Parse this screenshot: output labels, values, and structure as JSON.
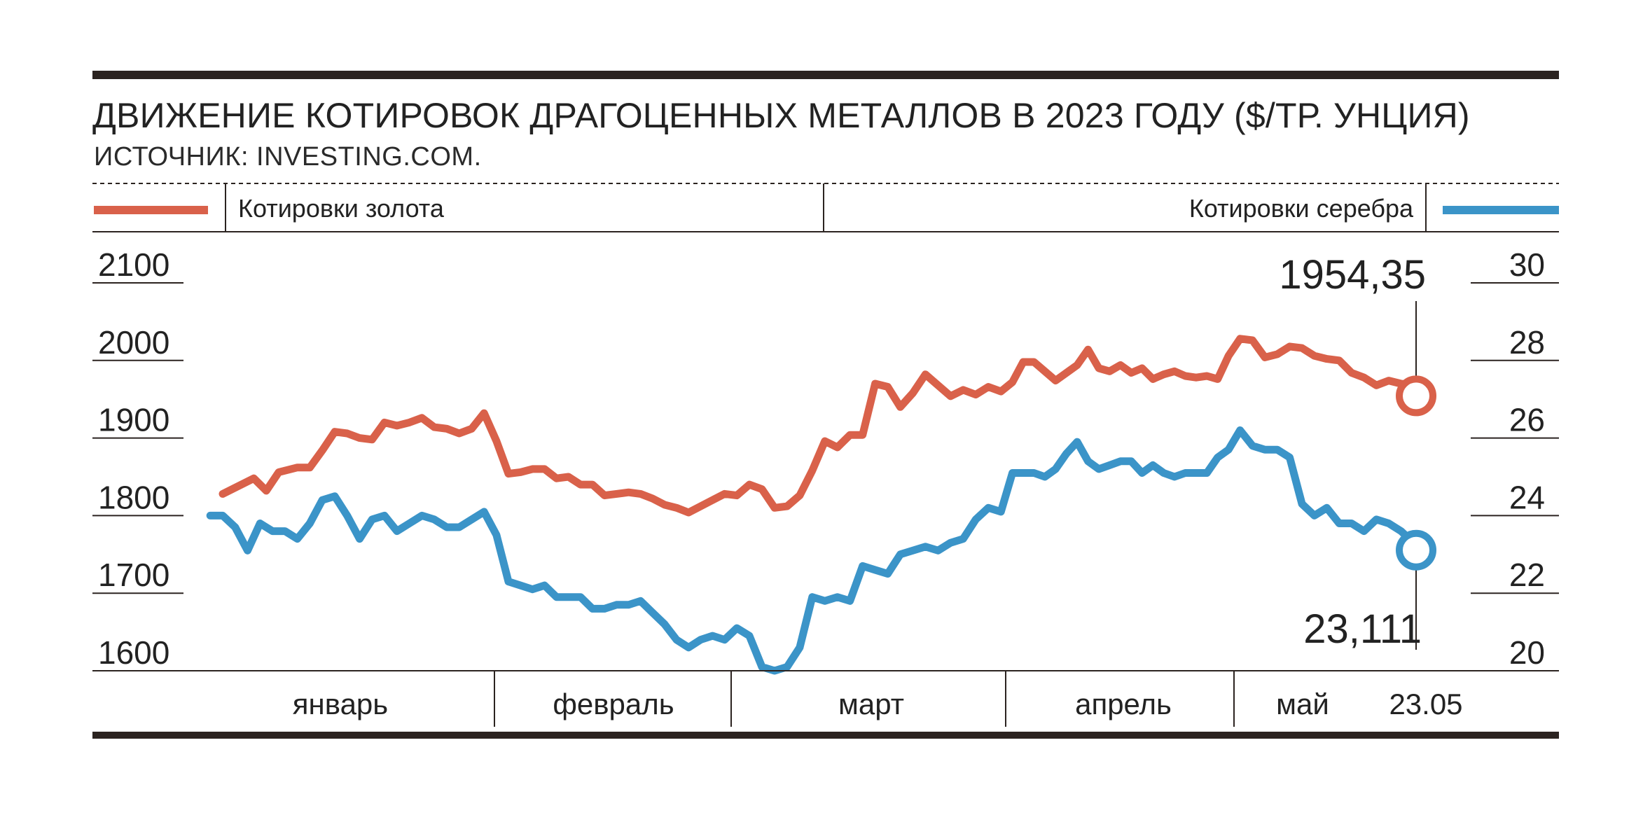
{
  "header": {
    "title": "ДВИЖЕНИЕ КОТИРОВОК ДРАГОЦЕННЫХ МЕТАЛЛОВ В 2023 ГОДУ ($/ТР. УНЦИЯ)",
    "source": "ИСТОЧНИК: INVESTING.COM."
  },
  "colors": {
    "gold": "#d9614a",
    "silver": "#3b94c8",
    "rule": "#2b2320"
  },
  "chart_data": {
    "type": "line",
    "x_unit": "day of 2023 (Jan 1 = 1)",
    "months": [
      "январь",
      "февраль",
      "март",
      "апрель",
      "май"
    ],
    "end_date_label": "23.05",
    "left_axis": {
      "label": "Котировки золота",
      "ticks": [
        2100,
        2000,
        1900,
        1800,
        1700,
        1600
      ],
      "range": [
        1600,
        2100
      ]
    },
    "right_axis": {
      "label": "Котировки серебра",
      "ticks": [
        30,
        28,
        26,
        24,
        22,
        20
      ],
      "range": [
        20,
        30
      ]
    },
    "grid": false,
    "legend": [
      "top-left",
      "top-right"
    ],
    "series": [
      {
        "name": "Котировки золота",
        "axis": "left",
        "color": "#d9614a",
        "last_value_label": "1954,35",
        "points": [
          [
            3,
            1828
          ],
          [
            8,
            1848
          ],
          [
            10,
            1832
          ],
          [
            12,
            1856
          ],
          [
            15,
            1862
          ],
          [
            17,
            1862
          ],
          [
            19,
            1884
          ],
          [
            21,
            1908
          ],
          [
            23,
            1906
          ],
          [
            25,
            1900
          ],
          [
            27,
            1898
          ],
          [
            29,
            1920
          ],
          [
            31,
            1916
          ],
          [
            33,
            1920
          ],
          [
            35,
            1926
          ],
          [
            37,
            1914
          ],
          [
            39,
            1912
          ],
          [
            41,
            1906
          ],
          [
            43,
            1912
          ],
          [
            45,
            1932
          ],
          [
            47,
            1896
          ],
          [
            49,
            1854
          ],
          [
            51,
            1856
          ],
          [
            53,
            1860
          ],
          [
            55,
            1860
          ],
          [
            57,
            1848
          ],
          [
            59,
            1850
          ],
          [
            61,
            1840
          ],
          [
            63,
            1840
          ],
          [
            65,
            1826
          ],
          [
            67,
            1828
          ],
          [
            69,
            1830
          ],
          [
            71,
            1828
          ],
          [
            73,
            1822
          ],
          [
            75,
            1814
          ],
          [
            77,
            1810
          ],
          [
            79,
            1804
          ],
          [
            81,
            1812
          ],
          [
            83,
            1820
          ],
          [
            85,
            1828
          ],
          [
            87,
            1826
          ],
          [
            89,
            1840
          ],
          [
            91,
            1834
          ],
          [
            93,
            1810
          ],
          [
            95,
            1812
          ],
          [
            97,
            1826
          ],
          [
            99,
            1858
          ],
          [
            101,
            1896
          ],
          [
            103,
            1888
          ],
          [
            105,
            1904
          ],
          [
            107,
            1904
          ],
          [
            109,
            1970
          ],
          [
            111,
            1966
          ],
          [
            113,
            1940
          ],
          [
            115,
            1958
          ],
          [
            117,
            1982
          ],
          [
            119,
            1968
          ],
          [
            121,
            1954
          ],
          [
            123,
            1962
          ],
          [
            125,
            1956
          ],
          [
            127,
            1966
          ],
          [
            129,
            1960
          ],
          [
            131,
            1972
          ],
          [
            133,
            1998
          ],
          [
            135,
            1998
          ],
          [
            137,
            1986
          ],
          [
            139,
            1974
          ],
          [
            141,
            1984
          ],
          [
            143,
            1994
          ],
          [
            145,
            2014
          ],
          [
            147,
            1990
          ],
          [
            149,
            1986
          ],
          [
            151,
            1994
          ],
          [
            153,
            1984
          ],
          [
            155,
            1990
          ],
          [
            157,
            1976
          ],
          [
            159,
            1982
          ],
          [
            161,
            1986
          ],
          [
            163,
            1980
          ],
          [
            165,
            1978
          ],
          [
            167,
            1980
          ],
          [
            169,
            1976
          ],
          [
            171,
            2006
          ],
          [
            173,
            2028
          ],
          [
            175,
            2026
          ],
          [
            177,
            2004
          ],
          [
            179,
            2008
          ],
          [
            181,
            2018
          ],
          [
            183,
            2016
          ],
          [
            185,
            2006
          ],
          [
            187,
            2002
          ],
          [
            189,
            2000
          ],
          [
            191,
            1984
          ],
          [
            193,
            1978
          ],
          [
            195,
            1968
          ],
          [
            197,
            1974
          ],
          [
            199,
            1970
          ],
          [
            201,
            1968
          ],
          [
            203,
            1954.35
          ]
        ]
      },
      {
        "name": "Котировки серебра",
        "axis": "right",
        "color": "#3b94c8",
        "last_value_label": "23,111",
        "points": [
          [
            1,
            24.0
          ],
          [
            3,
            24.0
          ],
          [
            5,
            23.7
          ],
          [
            7,
            23.1
          ],
          [
            9,
            23.8
          ],
          [
            11,
            23.6
          ],
          [
            13,
            23.6
          ],
          [
            15,
            23.4
          ],
          [
            17,
            23.8
          ],
          [
            19,
            24.4
          ],
          [
            21,
            24.5
          ],
          [
            23,
            24.0
          ],
          [
            25,
            23.4
          ],
          [
            27,
            23.9
          ],
          [
            29,
            24.0
          ],
          [
            31,
            23.6
          ],
          [
            33,
            23.8
          ],
          [
            35,
            24.0
          ],
          [
            37,
            23.9
          ],
          [
            39,
            23.7
          ],
          [
            41,
            23.7
          ],
          [
            43,
            23.9
          ],
          [
            45,
            24.1
          ],
          [
            47,
            23.5
          ],
          [
            49,
            22.3
          ],
          [
            51,
            22.2
          ],
          [
            53,
            22.1
          ],
          [
            55,
            22.2
          ],
          [
            57,
            21.9
          ],
          [
            59,
            21.9
          ],
          [
            61,
            21.9
          ],
          [
            63,
            21.6
          ],
          [
            65,
            21.6
          ],
          [
            67,
            21.7
          ],
          [
            69,
            21.7
          ],
          [
            71,
            21.8
          ],
          [
            73,
            21.5
          ],
          [
            75,
            21.2
          ],
          [
            77,
            20.8
          ],
          [
            79,
            20.6
          ],
          [
            81,
            20.8
          ],
          [
            83,
            20.9
          ],
          [
            85,
            20.8
          ],
          [
            87,
            21.1
          ],
          [
            89,
            20.9
          ],
          [
            91,
            20.1
          ],
          [
            93,
            20.0
          ],
          [
            95,
            20.1
          ],
          [
            97,
            20.6
          ],
          [
            99,
            21.9
          ],
          [
            101,
            21.8
          ],
          [
            103,
            21.9
          ],
          [
            105,
            21.8
          ],
          [
            107,
            22.7
          ],
          [
            109,
            22.6
          ],
          [
            111,
            22.5
          ],
          [
            113,
            23.0
          ],
          [
            115,
            23.1
          ],
          [
            117,
            23.2
          ],
          [
            119,
            23.1
          ],
          [
            121,
            23.3
          ],
          [
            123,
            23.4
          ],
          [
            125,
            23.9
          ],
          [
            127,
            24.2
          ],
          [
            129,
            24.1
          ],
          [
            131,
            25.1
          ],
          [
            133,
            25.1
          ],
          [
            135,
            25.1
          ],
          [
            137,
            25.0
          ],
          [
            139,
            25.2
          ],
          [
            141,
            25.6
          ],
          [
            143,
            25.9
          ],
          [
            145,
            25.4
          ],
          [
            147,
            25.2
          ],
          [
            149,
            25.3
          ],
          [
            151,
            25.4
          ],
          [
            153,
            25.4
          ],
          [
            155,
            25.1
          ],
          [
            157,
            25.3
          ],
          [
            159,
            25.1
          ],
          [
            161,
            25.0
          ],
          [
            163,
            25.1
          ],
          [
            165,
            25.1
          ],
          [
            167,
            25.1
          ],
          [
            169,
            25.5
          ],
          [
            171,
            25.7
          ],
          [
            173,
            26.2
          ],
          [
            175,
            25.8
          ],
          [
            177,
            25.7
          ],
          [
            179,
            25.7
          ],
          [
            181,
            25.5
          ],
          [
            183,
            24.3
          ],
          [
            185,
            24.0
          ],
          [
            187,
            24.2
          ],
          [
            189,
            23.8
          ],
          [
            191,
            23.8
          ],
          [
            193,
            23.6
          ],
          [
            195,
            23.9
          ],
          [
            197,
            23.8
          ],
          [
            199,
            23.6
          ],
          [
            201,
            23.3
          ],
          [
            203,
            23.111
          ]
        ]
      }
    ]
  }
}
